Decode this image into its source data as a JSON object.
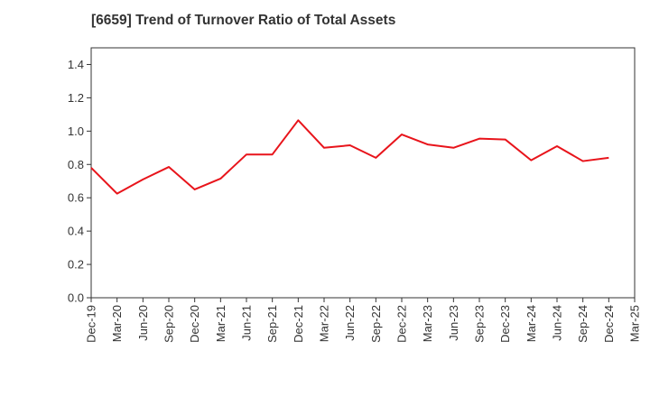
{
  "chart_data": {
    "type": "line",
    "title": "[6659]  Trend of Turnover Ratio of Total Assets",
    "xlabel": "",
    "ylabel": "",
    "ylim": [
      0,
      1.5
    ],
    "yticks": [
      "0.0",
      "0.2",
      "0.4",
      "0.6",
      "0.8",
      "1.0",
      "1.2",
      "1.4"
    ],
    "categories": [
      "Dec-19",
      "Mar-20",
      "Jun-20",
      "Sep-20",
      "Dec-20",
      "Mar-21",
      "Jun-21",
      "Sep-21",
      "Dec-21",
      "Mar-22",
      "Jun-22",
      "Sep-22",
      "Dec-22",
      "Mar-23",
      "Jun-23",
      "Sep-23",
      "Dec-23",
      "Mar-24",
      "Jun-24",
      "Sep-24",
      "Dec-24",
      "Mar-25"
    ],
    "grid": true,
    "series": [
      {
        "color": "#e8141b",
        "values": [
          0.78,
          0.625,
          0.71,
          0.785,
          0.65,
          0.715,
          0.86,
          0.86,
          1.065,
          0.9,
          0.915,
          0.84,
          0.98,
          0.92,
          0.9,
          0.955,
          0.95,
          0.825,
          0.91,
          0.82,
          0.84,
          null
        ]
      }
    ]
  }
}
